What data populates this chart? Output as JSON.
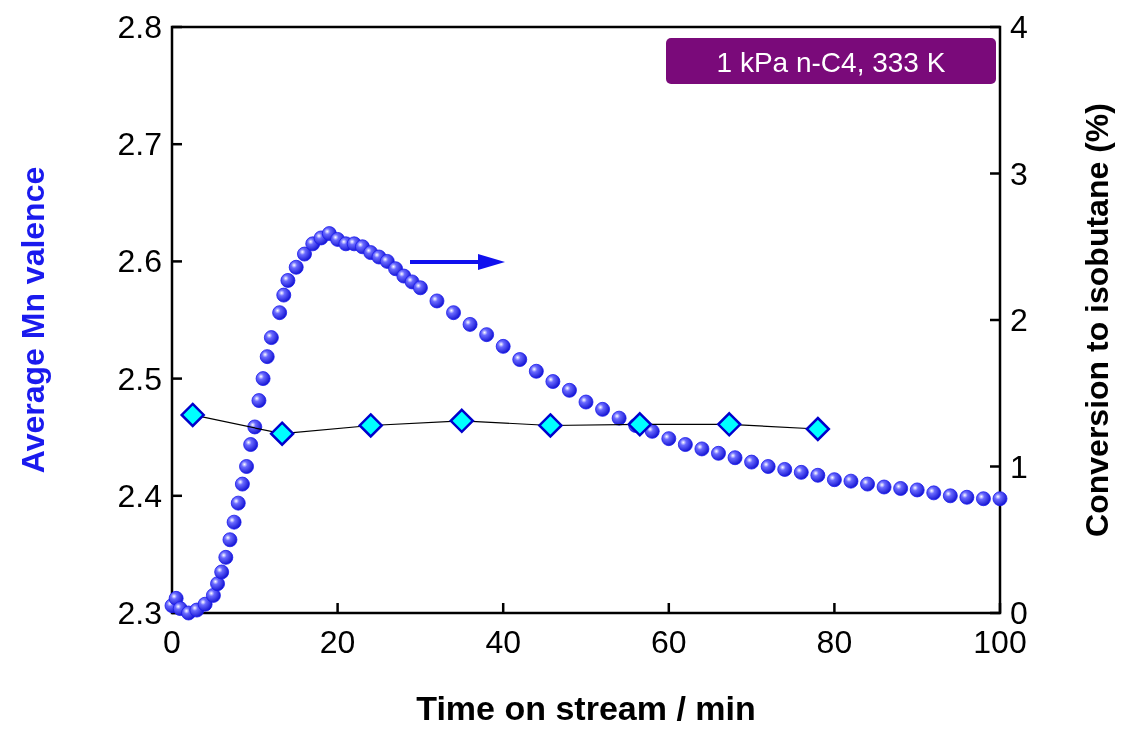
{
  "chart_data": {
    "type": "line",
    "xlabel": "Time on stream / min",
    "ylabel": "Average Mn valence",
    "y2label": "Conversion to isobutane (%)",
    "xlim": [
      0,
      100
    ],
    "xticks": [
      0,
      20,
      40,
      60,
      80,
      100
    ],
    "ylim": [
      2.3,
      2.8
    ],
    "yticks": [
      2.3,
      2.4,
      2.5,
      2.6,
      2.7,
      2.8
    ],
    "y2lim": [
      0,
      4
    ],
    "y2ticks": [
      0,
      1,
      2,
      3,
      4
    ],
    "grid": false,
    "annotations": [
      "1 kPa n-C4, 333 K"
    ],
    "series": [
      {
        "type": "scatter",
        "axis": "y2",
        "color": "#1a1aee",
        "marker": "circle",
        "x": [
          0,
          0.5,
          1,
          2,
          3,
          4,
          5,
          5.5,
          6,
          6.5,
          7,
          7.5,
          8,
          8.5,
          9,
          9.5,
          10,
          10.5,
          11,
          11.5,
          12,
          13,
          13.5,
          14,
          15,
          16,
          17,
          18,
          19,
          20,
          21,
          22,
          23,
          24,
          25,
          26,
          27,
          28,
          29,
          30,
          32,
          34,
          36,
          38,
          40,
          42,
          44,
          46,
          48,
          50,
          52,
          54,
          56,
          58,
          60,
          62,
          64,
          66,
          68,
          70,
          72,
          74,
          76,
          78,
          80,
          82,
          84,
          86,
          88,
          90,
          92,
          94,
          96,
          98,
          100
        ],
        "values": [
          0.05,
          0.1,
          0.03,
          0.0,
          0.02,
          0.06,
          0.12,
          0.2,
          0.28,
          0.38,
          0.5,
          0.62,
          0.75,
          0.88,
          1.0,
          1.15,
          1.27,
          1.45,
          1.6,
          1.75,
          1.88,
          2.05,
          2.17,
          2.27,
          2.36,
          2.45,
          2.52,
          2.56,
          2.59,
          2.55,
          2.52,
          2.52,
          2.5,
          2.46,
          2.43,
          2.4,
          2.35,
          2.3,
          2.26,
          2.22,
          2.13,
          2.05,
          1.97,
          1.9,
          1.82,
          1.73,
          1.65,
          1.58,
          1.52,
          1.44,
          1.39,
          1.33,
          1.28,
          1.24,
          1.19,
          1.15,
          1.12,
          1.09,
          1.06,
          1.03,
          1.0,
          0.98,
          0.96,
          0.94,
          0.91,
          0.9,
          0.88,
          0.86,
          0.85,
          0.84,
          0.82,
          0.8,
          0.79,
          0.78,
          0.78
        ]
      },
      {
        "color": "#00ffff",
        "marker": "diamond",
        "x": [
          2.5,
          13.3,
          24,
          35,
          45.7,
          56.5,
          67.3,
          78
        ],
        "values": [
          2.469,
          2.453,
          2.46,
          2.464,
          2.46,
          2.461,
          2.461,
          2.457
        ]
      }
    ]
  }
}
